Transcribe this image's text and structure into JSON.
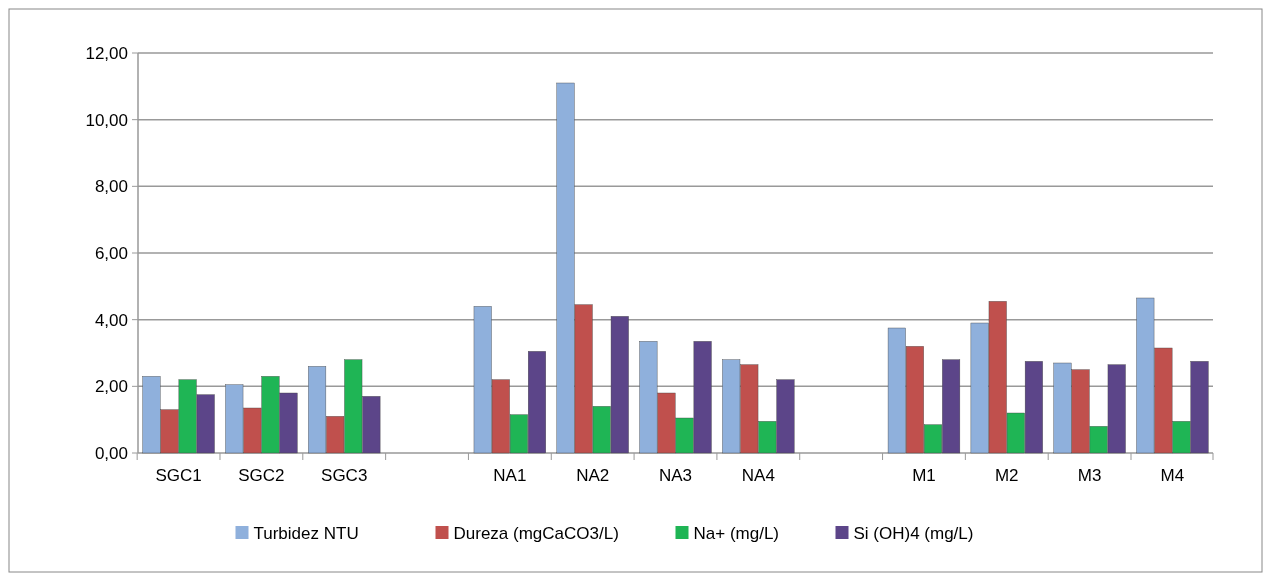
{
  "chart_data": {
    "type": "bar",
    "categories": [
      "SGC1",
      "SGC2",
      "SGC3",
      null,
      "NA1",
      "NA2",
      "NA3",
      "NA4",
      null,
      "M1",
      "M2",
      "M3",
      "M4"
    ],
    "series": [
      {
        "name": "Turbidez NTU",
        "color": "#8fb0dc",
        "values": [
          2.3,
          2.05,
          2.6,
          null,
          4.4,
          11.1,
          3.35,
          2.8,
          null,
          3.75,
          3.9,
          2.7,
          4.65
        ]
      },
      {
        "name": "Dureza (mgCaCO3/L)",
        "color": "#c0504d",
        "values": [
          1.3,
          1.35,
          1.1,
          null,
          2.2,
          4.45,
          1.8,
          2.65,
          null,
          3.2,
          4.55,
          2.5,
          3.15
        ]
      },
      {
        "name": "Na+ (mg/L)",
        "color": "#1fb555",
        "values": [
          2.2,
          2.3,
          2.8,
          null,
          1.15,
          1.4,
          1.05,
          0.95,
          null,
          0.85,
          1.2,
          0.8,
          0.95
        ]
      },
      {
        "name": "Si (OH)4 (mg/L)",
        "color": "#5c4589",
        "values": [
          1.75,
          1.8,
          1.7,
          null,
          3.05,
          4.1,
          3.35,
          2.2,
          null,
          2.8,
          2.75,
          2.65,
          2.75
        ]
      }
    ],
    "ylim": [
      0,
      12
    ],
    "yticks": [
      {
        "value": 0,
        "label": "0,00"
      },
      {
        "value": 2,
        "label": "2,00"
      },
      {
        "value": 4,
        "label": "4,00"
      },
      {
        "value": 6,
        "label": "6,00"
      },
      {
        "value": 8,
        "label": "8,00"
      },
      {
        "value": 10,
        "label": "10,00"
      },
      {
        "value": 12,
        "label": "12,00"
      }
    ],
    "grid": "y",
    "legend": "bottom"
  }
}
